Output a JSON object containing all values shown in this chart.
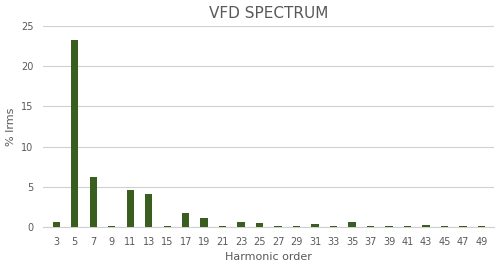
{
  "title": "VFD SPECTRUM",
  "xlabel": "Harmonic order",
  "ylabel": "% Irms",
  "bar_color": "#3a5e1f",
  "background_color": "#ffffff",
  "grid_color": "#d0d0d0",
  "text_color": "#595959",
  "harmonics": [
    3,
    5,
    7,
    9,
    11,
    13,
    15,
    17,
    19,
    21,
    23,
    25,
    27,
    29,
    31,
    33,
    35,
    37,
    39,
    41,
    43,
    45,
    47,
    49
  ],
  "values": [
    0.6,
    23.3,
    6.2,
    0.2,
    4.6,
    4.1,
    0.2,
    1.7,
    1.1,
    0.2,
    0.6,
    0.5,
    0.1,
    0.2,
    0.4,
    0.1,
    0.6,
    0.1,
    0.1,
    0.1,
    0.3,
    0.1,
    0.2,
    0.1
  ],
  "ylim": [
    0,
    25
  ],
  "yticks": [
    0,
    5,
    10,
    15,
    20,
    25
  ],
  "title_fontsize": 11,
  "axis_label_fontsize": 8,
  "tick_fontsize": 7,
  "bar_width": 0.4
}
